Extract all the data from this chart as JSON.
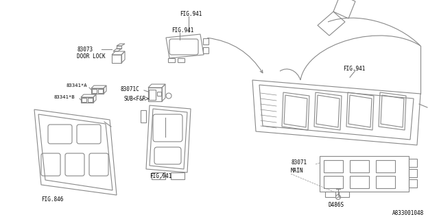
{
  "bg_color": "#ffffff",
  "line_color": "#888888",
  "text_color": "#000000",
  "fig_id": "A833001048",
  "labels": {
    "door_lock_num": "83073",
    "door_lock_text": "DOOR LOCK",
    "sub_num": "83071C",
    "sub_text": "SUB<F&R>",
    "main_num": "83071",
    "main_text": "MAIN",
    "screw": "D486S",
    "fig846": "FIG.846",
    "fig941a": "FIG.941",
    "fig941b": "FIG.941",
    "fig941c": "FIG.941",
    "fig941d": "FIG.941",
    "part_a": "83341*A",
    "part_b": "83341*B"
  }
}
